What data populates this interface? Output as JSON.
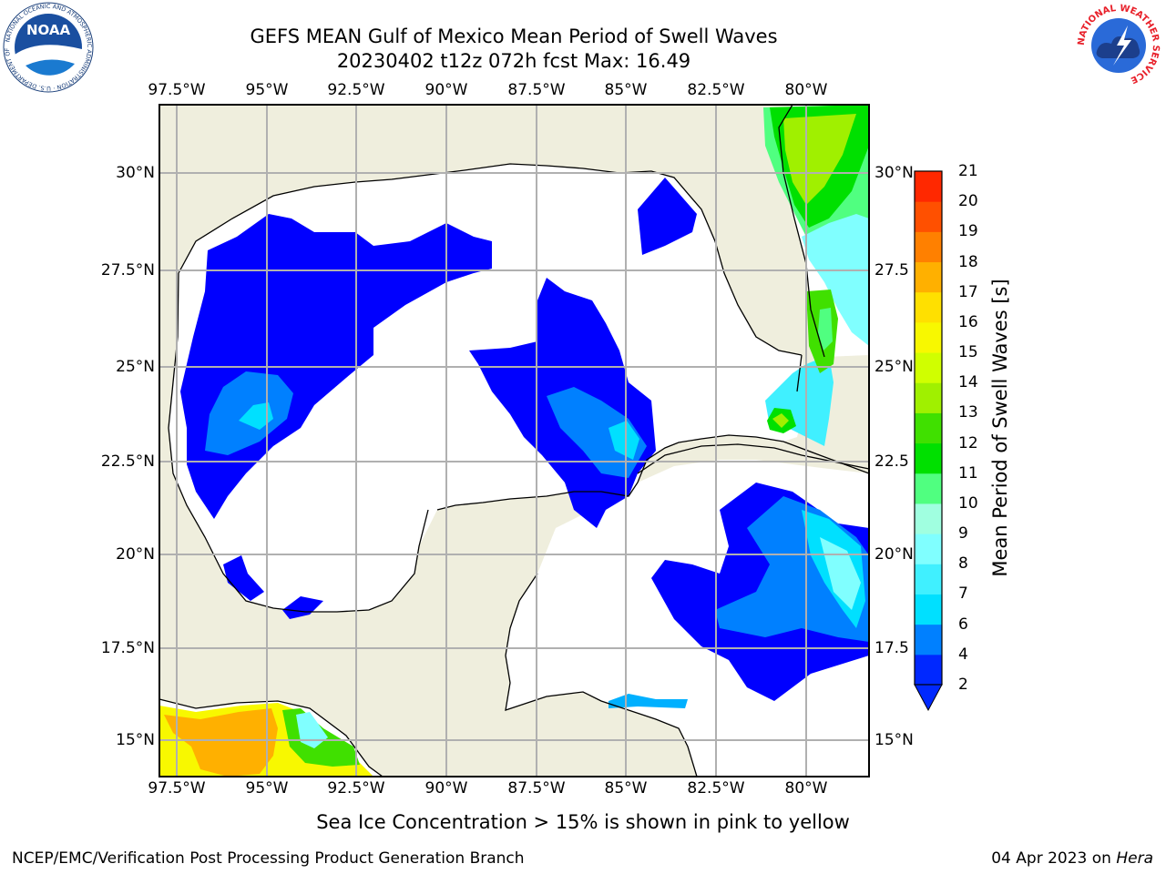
{
  "title": {
    "line1": "GEFS MEAN Gulf of Mexico Mean Period of Swell Waves",
    "line2": "20230402 t12z 072h fcst   Max: 16.49"
  },
  "logos": {
    "noaa": {
      "text": "NOAA",
      "ring_text": "NATIONAL OCEANIC AND ATMOSPHERIC ADMINISTRATION · U.S. DEPARTMENT OF COMMERCE"
    },
    "nws": {
      "ring_text": "NATIONAL WEATHER SERVICE"
    }
  },
  "map": {
    "lon_ticks": [
      "97.5°W",
      "95°W",
      "92.5°W",
      "90°W",
      "87.5°W",
      "85°W",
      "82.5°W",
      "80°W"
    ],
    "lat_ticks_left": [
      "30°N",
      "27.5°N",
      "25°N",
      "22.5°N",
      "20°N",
      "17.5°N",
      "15°N"
    ],
    "lat_ticks_right": [
      "30°N",
      "27.5",
      "25°N",
      "22.5",
      "20°N",
      "17.5",
      "15°N"
    ],
    "colors": {
      "land": "#efeedd",
      "ocean": "#ffffff",
      "grid": "#b0b0b0"
    }
  },
  "colorbar": {
    "label": "Mean Period of Swell Waves [s]",
    "ticks": [
      "2",
      "4",
      "6",
      "7",
      "8",
      "9",
      "10",
      "11",
      "12",
      "13",
      "14",
      "15",
      "16",
      "17",
      "18",
      "19",
      "20",
      "21"
    ],
    "colors": [
      "#0028ff",
      "#0080ff",
      "#00e0ff",
      "#40f0ff",
      "#80ffff",
      "#a0ffe0",
      "#50ff80",
      "#00e000",
      "#40e000",
      "#a0f000",
      "#d0ff00",
      "#f8f800",
      "#ffe000",
      "#ffb000",
      "#ff8000",
      "#ff5000",
      "#ff2800",
      "#ff0000"
    ]
  },
  "note": "Sea Ice Concentration > 15% is shown in pink to yellow",
  "footer": {
    "left": "NCEP/EMC/Verification Post Processing Product Generation Branch",
    "right_prefix": "04 Apr 2023 on",
    "right_italic": "Hera"
  }
}
